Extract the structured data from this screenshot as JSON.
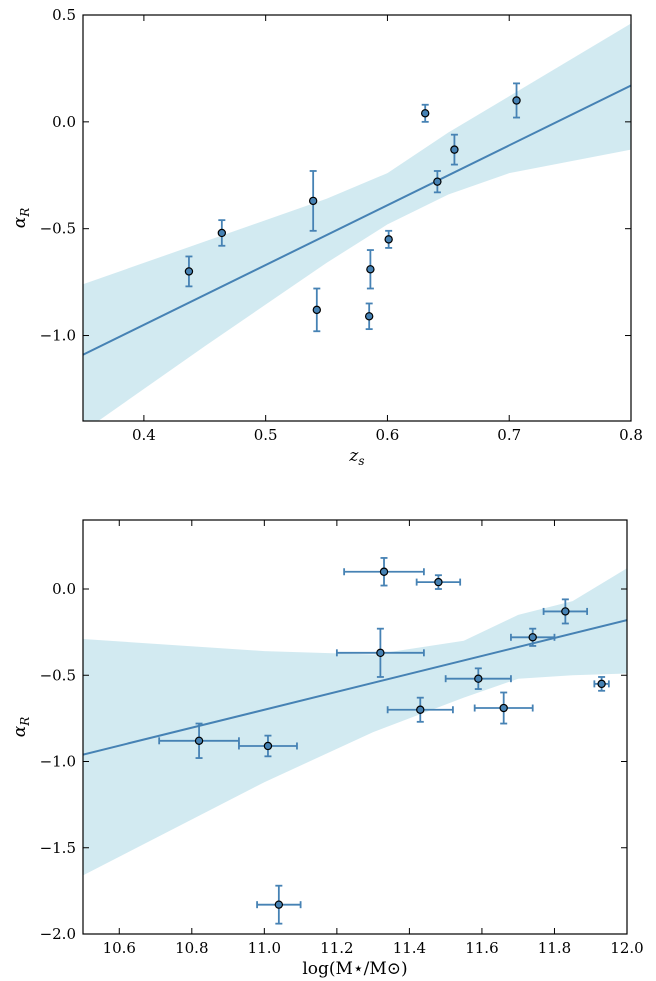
{
  "colors": {
    "line": "#4682b4",
    "band": "#add8e6",
    "point_fill": "#4682b4",
    "point_edge": "#000000",
    "errorbar": "#4682b4"
  },
  "chart_data": [
    {
      "type": "scatter",
      "xlabel": "z_s",
      "ylabel": "α_R",
      "xlim": [
        0.35,
        0.8
      ],
      "ylim": [
        -1.4,
        0.5
      ],
      "xticks": [
        0.4,
        0.5,
        0.6,
        0.7,
        0.8
      ],
      "xtick_labels": [
        "0.4",
        "0.5",
        "0.6",
        "0.7",
        "0.8"
      ],
      "yticks": [
        -1.0,
        -0.5,
        0.0,
        0.5
      ],
      "ytick_labels": [
        "−1.0",
        "−0.5",
        "0.0",
        "0.5"
      ],
      "grid": false,
      "points": [
        {
          "x": 0.437,
          "y": -0.7,
          "yerr_lo": 0.07,
          "yerr_hi": 0.07
        },
        {
          "x": 0.464,
          "y": -0.52,
          "yerr_lo": 0.06,
          "yerr_hi": 0.06
        },
        {
          "x": 0.539,
          "y": -0.37,
          "yerr_lo": 0.14,
          "yerr_hi": 0.14
        },
        {
          "x": 0.542,
          "y": -0.88,
          "yerr_lo": 0.1,
          "yerr_hi": 0.1
        },
        {
          "x": 0.585,
          "y": -0.91,
          "yerr_lo": 0.06,
          "yerr_hi": 0.06
        },
        {
          "x": 0.586,
          "y": -0.69,
          "yerr_lo": 0.09,
          "yerr_hi": 0.09
        },
        {
          "x": 0.601,
          "y": -0.55,
          "yerr_lo": 0.04,
          "yerr_hi": 0.04
        },
        {
          "x": 0.631,
          "y": 0.04,
          "yerr_lo": 0.04,
          "yerr_hi": 0.04
        },
        {
          "x": 0.641,
          "y": -0.28,
          "yerr_lo": 0.05,
          "yerr_hi": 0.05
        },
        {
          "x": 0.655,
          "y": -0.13,
          "yerr_lo": 0.07,
          "yerr_hi": 0.07
        },
        {
          "x": 0.706,
          "y": 0.1,
          "yerr_lo": 0.08,
          "yerr_hi": 0.08
        }
      ],
      "fit_line": [
        [
          0.35,
          -1.09
        ],
        [
          0.8,
          0.17
        ]
      ],
      "band_upper": [
        [
          0.35,
          -0.76
        ],
        [
          0.45,
          -0.56
        ],
        [
          0.55,
          -0.36
        ],
        [
          0.6,
          -0.24
        ],
        [
          0.65,
          -0.05
        ],
        [
          0.7,
          0.12
        ],
        [
          0.8,
          0.46
        ]
      ],
      "band_lower": [
        [
          0.35,
          -1.45
        ],
        [
          0.45,
          -1.05
        ],
        [
          0.55,
          -0.66
        ],
        [
          0.6,
          -0.48
        ],
        [
          0.65,
          -0.34
        ],
        [
          0.7,
          -0.24
        ],
        [
          0.8,
          -0.13
        ]
      ]
    },
    {
      "type": "scatter",
      "xlabel": "log(M⋆/M⊙)",
      "ylabel": "α_R",
      "xlim": [
        10.5,
        12.0
      ],
      "ylim": [
        -2.0,
        0.4
      ],
      "xticks": [
        10.6,
        10.8,
        11.0,
        11.2,
        11.4,
        11.6,
        11.8,
        12.0
      ],
      "xtick_labels": [
        "10.6",
        "10.8",
        "11.0",
        "11.2",
        "11.4",
        "11.6",
        "11.8",
        "12.0"
      ],
      "yticks": [
        -2.0,
        -1.5,
        -1.0,
        -0.5,
        0.0
      ],
      "ytick_labels": [
        "−2.0",
        "−1.5",
        "−1.0",
        "−0.5",
        "0.0"
      ],
      "grid": false,
      "points": [
        {
          "x": 10.82,
          "y": -0.88,
          "xerr": 0.11,
          "yerr_lo": 0.1,
          "yerr_hi": 0.1
        },
        {
          "x": 11.01,
          "y": -0.91,
          "xerr": 0.08,
          "yerr_lo": 0.06,
          "yerr_hi": 0.06
        },
        {
          "x": 11.04,
          "y": -1.83,
          "xerr": 0.06,
          "yerr_lo": 0.11,
          "yerr_hi": 0.11
        },
        {
          "x": 11.32,
          "y": -0.37,
          "xerr": 0.12,
          "yerr_lo": 0.14,
          "yerr_hi": 0.14
        },
        {
          "x": 11.33,
          "y": 0.1,
          "xerr": 0.11,
          "yerr_lo": 0.08,
          "yerr_hi": 0.08
        },
        {
          "x": 11.43,
          "y": -0.7,
          "xerr": 0.09,
          "yerr_lo": 0.07,
          "yerr_hi": 0.07
        },
        {
          "x": 11.48,
          "y": 0.04,
          "xerr": 0.06,
          "yerr_lo": 0.04,
          "yerr_hi": 0.04
        },
        {
          "x": 11.59,
          "y": -0.52,
          "xerr": 0.09,
          "yerr_lo": 0.06,
          "yerr_hi": 0.06
        },
        {
          "x": 11.66,
          "y": -0.69,
          "xerr": 0.08,
          "yerr_lo": 0.09,
          "yerr_hi": 0.09
        },
        {
          "x": 11.74,
          "y": -0.28,
          "xerr": 0.06,
          "yerr_lo": 0.05,
          "yerr_hi": 0.05
        },
        {
          "x": 11.83,
          "y": -0.13,
          "xerr": 0.06,
          "yerr_lo": 0.07,
          "yerr_hi": 0.07
        },
        {
          "x": 11.93,
          "y": -0.55,
          "xerr": 0.02,
          "yerr_lo": 0.04,
          "yerr_hi": 0.04
        }
      ],
      "fit_line": [
        [
          10.5,
          -0.96
        ],
        [
          12.0,
          -0.18
        ]
      ],
      "band_upper": [
        [
          10.5,
          -0.29
        ],
        [
          11.0,
          -0.36
        ],
        [
          11.3,
          -0.38
        ],
        [
          11.55,
          -0.3
        ],
        [
          11.7,
          -0.15
        ],
        [
          11.85,
          -0.07
        ],
        [
          12.0,
          0.12
        ]
      ],
      "band_lower": [
        [
          10.5,
          -1.66
        ],
        [
          11.0,
          -1.12
        ],
        [
          11.3,
          -0.83
        ],
        [
          11.55,
          -0.63
        ],
        [
          11.7,
          -0.52
        ],
        [
          11.85,
          -0.5
        ],
        [
          12.0,
          -0.49
        ]
      ]
    }
  ]
}
